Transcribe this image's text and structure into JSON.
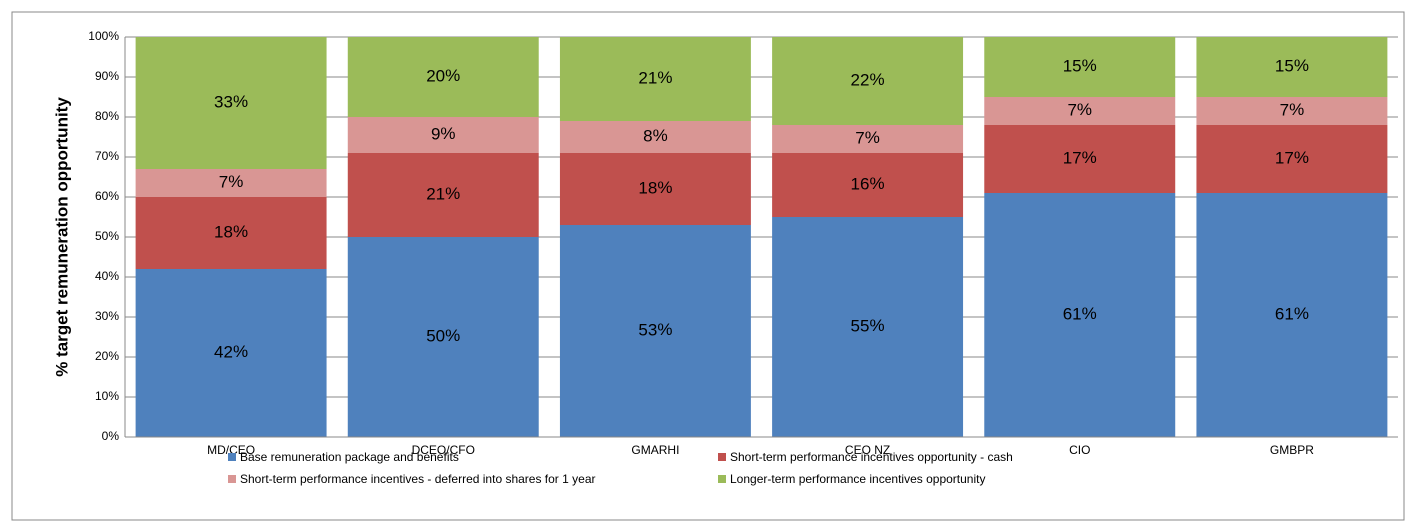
{
  "chart_data": {
    "type": "stacked_bar",
    "ylabel": "% target remuneration opportunity",
    "categories": [
      "MD/CEO",
      "DCEO/CFO",
      "GMARHI",
      "CEO NZ",
      "CIO",
      "GMBPR"
    ],
    "series": [
      {
        "name": "Base remuneration package and benefits",
        "color": "#4f81bd",
        "values": [
          42,
          50,
          53,
          55,
          61,
          61
        ]
      },
      {
        "name": "Short-term performance incentives opportunity - cash",
        "color": "#c0504d",
        "values": [
          18,
          21,
          18,
          16,
          17,
          17
        ]
      },
      {
        "name": "Short-term performance incentives - deferred into shares for 1 year",
        "color": "#d99694",
        "values": [
          7,
          9,
          8,
          7,
          7,
          7
        ]
      },
      {
        "name": "Longer-term performance incentives opportunity",
        "color": "#9bbb59",
        "values": [
          33,
          20,
          21,
          22,
          15,
          15
        ]
      }
    ],
    "ylim": [
      0,
      100
    ],
    "yticks": [
      {
        "value": 0,
        "label": "0%"
      },
      {
        "value": 10,
        "label": "10%"
      },
      {
        "value": 20,
        "label": "20%"
      },
      {
        "value": 30,
        "label": "30%"
      },
      {
        "value": 40,
        "label": "40%"
      },
      {
        "value": 50,
        "label": "50%"
      },
      {
        "value": 60,
        "label": "60%"
      },
      {
        "value": 70,
        "label": "70%"
      },
      {
        "value": 80,
        "label": "80%"
      },
      {
        "value": 90,
        "label": "90%"
      },
      {
        "value": 100,
        "label": "100%"
      }
    ],
    "grid": true
  }
}
